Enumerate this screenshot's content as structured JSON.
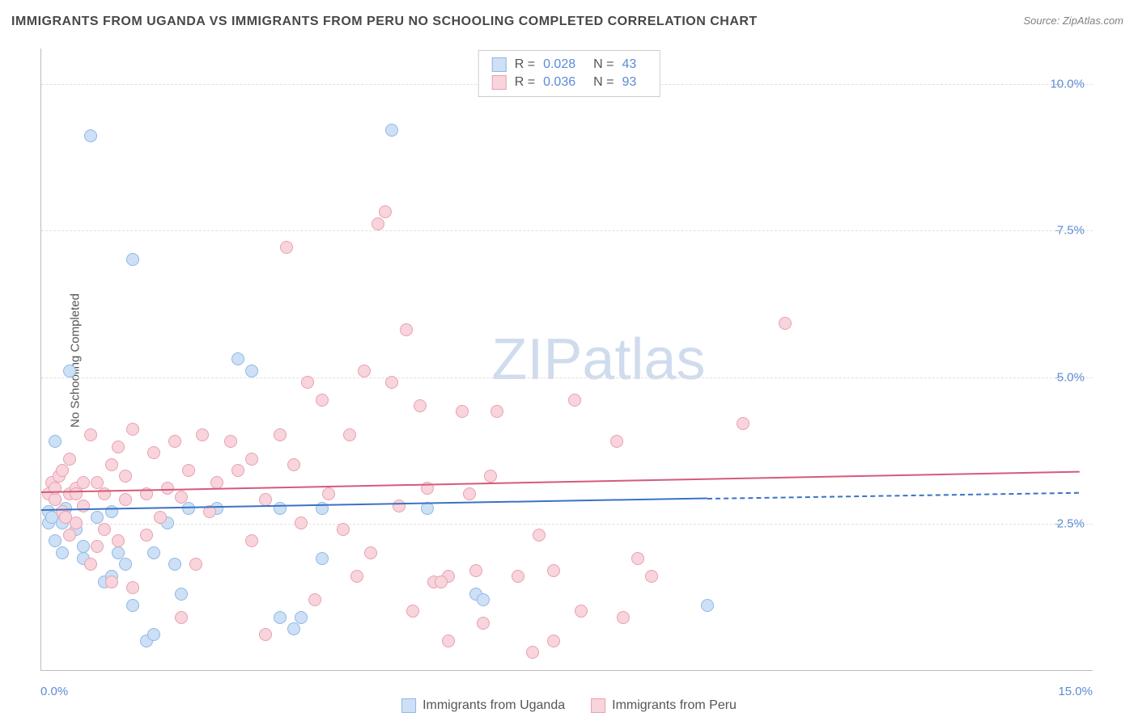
{
  "title": "IMMIGRANTS FROM UGANDA VS IMMIGRANTS FROM PERU NO SCHOOLING COMPLETED CORRELATION CHART",
  "source": "Source: ZipAtlas.com",
  "ylabel": "No Schooling Completed",
  "watermark": "ZIPatlas",
  "chart": {
    "type": "scatter",
    "xlim": [
      0.0,
      15.0
    ],
    "ylim": [
      0.0,
      10.6
    ],
    "y_ticks": [
      2.5,
      5.0,
      7.5,
      10.0
    ],
    "y_tick_labels": [
      "2.5%",
      "5.0%",
      "7.5%",
      "10.0%"
    ],
    "x_corner_labels": [
      "0.0%",
      "15.0%"
    ],
    "grid_color": "#e0e0e0",
    "axis_color": "#bbbbbb",
    "tick_label_color": "#5b8bd4",
    "background_color": "#ffffff",
    "marker_radius": 8,
    "series": [
      {
        "name": "Immigrants from Uganda",
        "key": "uganda",
        "fill": "#cde0f5",
        "stroke": "#8fb8e6",
        "line_color": "#3b72c4",
        "R": "0.028",
        "N": "43",
        "trend": {
          "x1": 0.0,
          "y1": 2.75,
          "x2": 9.5,
          "y2": 2.95
        },
        "trend_ext": {
          "x1": 9.5,
          "y1": 2.95,
          "x2": 14.8,
          "y2": 3.05
        },
        "points": [
          [
            0.1,
            2.5
          ],
          [
            0.1,
            2.7
          ],
          [
            0.15,
            2.6
          ],
          [
            0.2,
            2.9
          ],
          [
            0.2,
            2.2
          ],
          [
            0.2,
            3.9
          ],
          [
            0.3,
            2.5
          ],
          [
            0.3,
            2.0
          ],
          [
            0.35,
            2.75
          ],
          [
            0.4,
            5.1
          ],
          [
            0.5,
            2.4
          ],
          [
            0.6,
            2.1
          ],
          [
            0.6,
            1.9
          ],
          [
            0.7,
            9.1
          ],
          [
            0.8,
            2.6
          ],
          [
            0.9,
            1.5
          ],
          [
            1.0,
            2.7
          ],
          [
            1.0,
            1.6
          ],
          [
            1.1,
            2.0
          ],
          [
            1.2,
            1.8
          ],
          [
            1.3,
            7.0
          ],
          [
            1.3,
            1.1
          ],
          [
            1.5,
            0.5
          ],
          [
            1.6,
            2.0
          ],
          [
            1.6,
            0.6
          ],
          [
            1.8,
            2.5
          ],
          [
            1.9,
            1.8
          ],
          [
            2.0,
            1.3
          ],
          [
            2.1,
            2.75
          ],
          [
            2.5,
            2.75
          ],
          [
            2.8,
            5.3
          ],
          [
            3.0,
            5.1
          ],
          [
            3.4,
            2.75
          ],
          [
            3.4,
            0.9
          ],
          [
            3.6,
            0.7
          ],
          [
            3.7,
            0.9
          ],
          [
            4.0,
            2.75
          ],
          [
            4.0,
            1.9
          ],
          [
            5.0,
            9.2
          ],
          [
            5.5,
            2.75
          ],
          [
            6.2,
            1.3
          ],
          [
            6.3,
            1.2
          ],
          [
            9.5,
            1.1
          ]
        ]
      },
      {
        "name": "Immigrants from Peru",
        "key": "peru",
        "fill": "#f8d4dc",
        "stroke": "#e9a0b0",
        "line_color": "#d65a7a",
        "R": "0.036",
        "N": "93",
        "trend": {
          "x1": 0.0,
          "y1": 3.05,
          "x2": 14.8,
          "y2": 3.4
        },
        "points": [
          [
            0.1,
            3.0
          ],
          [
            0.15,
            3.2
          ],
          [
            0.2,
            2.9
          ],
          [
            0.2,
            3.1
          ],
          [
            0.25,
            3.3
          ],
          [
            0.3,
            2.7
          ],
          [
            0.3,
            3.4
          ],
          [
            0.35,
            2.6
          ],
          [
            0.4,
            3.0
          ],
          [
            0.4,
            3.6
          ],
          [
            0.4,
            2.3
          ],
          [
            0.5,
            3.1
          ],
          [
            0.5,
            2.5
          ],
          [
            0.5,
            3.0
          ],
          [
            0.6,
            3.2
          ],
          [
            0.6,
            2.8
          ],
          [
            0.7,
            4.0
          ],
          [
            0.7,
            1.8
          ],
          [
            0.8,
            3.2
          ],
          [
            0.8,
            2.1
          ],
          [
            0.9,
            3.0
          ],
          [
            0.9,
            2.4
          ],
          [
            1.0,
            3.5
          ],
          [
            1.0,
            1.5
          ],
          [
            1.1,
            3.8
          ],
          [
            1.1,
            2.2
          ],
          [
            1.2,
            3.3
          ],
          [
            1.2,
            2.9
          ],
          [
            1.3,
            4.1
          ],
          [
            1.3,
            1.4
          ],
          [
            1.5,
            3.0
          ],
          [
            1.5,
            2.3
          ],
          [
            1.6,
            3.7
          ],
          [
            1.7,
            2.6
          ],
          [
            1.8,
            3.1
          ],
          [
            1.9,
            3.9
          ],
          [
            2.0,
            2.95
          ],
          [
            2.0,
            0.9
          ],
          [
            2.1,
            3.4
          ],
          [
            2.2,
            1.8
          ],
          [
            2.3,
            4.0
          ],
          [
            2.4,
            2.7
          ],
          [
            2.5,
            3.2
          ],
          [
            2.7,
            3.9
          ],
          [
            2.8,
            3.4
          ],
          [
            3.0,
            2.2
          ],
          [
            3.0,
            3.6
          ],
          [
            3.2,
            0.6
          ],
          [
            3.2,
            2.9
          ],
          [
            3.4,
            4.0
          ],
          [
            3.5,
            7.2
          ],
          [
            3.6,
            3.5
          ],
          [
            3.8,
            4.9
          ],
          [
            3.9,
            1.2
          ],
          [
            4.0,
            4.6
          ],
          [
            4.1,
            3.0
          ],
          [
            4.3,
            2.4
          ],
          [
            4.4,
            4.0
          ],
          [
            4.5,
            1.6
          ],
          [
            4.6,
            5.1
          ],
          [
            4.8,
            7.6
          ],
          [
            4.9,
            7.8
          ],
          [
            5.0,
            4.9
          ],
          [
            5.1,
            2.8
          ],
          [
            5.2,
            5.8
          ],
          [
            5.3,
            1.0
          ],
          [
            5.4,
            4.5
          ],
          [
            5.5,
            3.1
          ],
          [
            5.6,
            1.5
          ],
          [
            5.8,
            0.5
          ],
          [
            5.8,
            1.6
          ],
          [
            6.0,
            4.4
          ],
          [
            6.1,
            3.0
          ],
          [
            6.2,
            1.7
          ],
          [
            6.3,
            0.8
          ],
          [
            6.4,
            3.3
          ],
          [
            6.5,
            4.4
          ],
          [
            6.8,
            1.6
          ],
          [
            7.0,
            0.3
          ],
          [
            7.1,
            2.3
          ],
          [
            7.3,
            0.5
          ],
          [
            7.3,
            1.7
          ],
          [
            7.6,
            4.6
          ],
          [
            7.7,
            1.0
          ],
          [
            8.2,
            3.9
          ],
          [
            8.3,
            0.9
          ],
          [
            8.5,
            1.9
          ],
          [
            8.7,
            1.6
          ],
          [
            10.0,
            4.2
          ],
          [
            10.6,
            5.9
          ],
          [
            5.7,
            1.5
          ],
          [
            4.7,
            2.0
          ],
          [
            3.7,
            2.5
          ]
        ]
      }
    ]
  },
  "legend_top": {
    "r_label": "R =",
    "n_label": "N ="
  },
  "legend_bottom": [
    {
      "key": "uganda",
      "label": "Immigrants from Uganda"
    },
    {
      "key": "peru",
      "label": "Immigrants from Peru"
    }
  ]
}
